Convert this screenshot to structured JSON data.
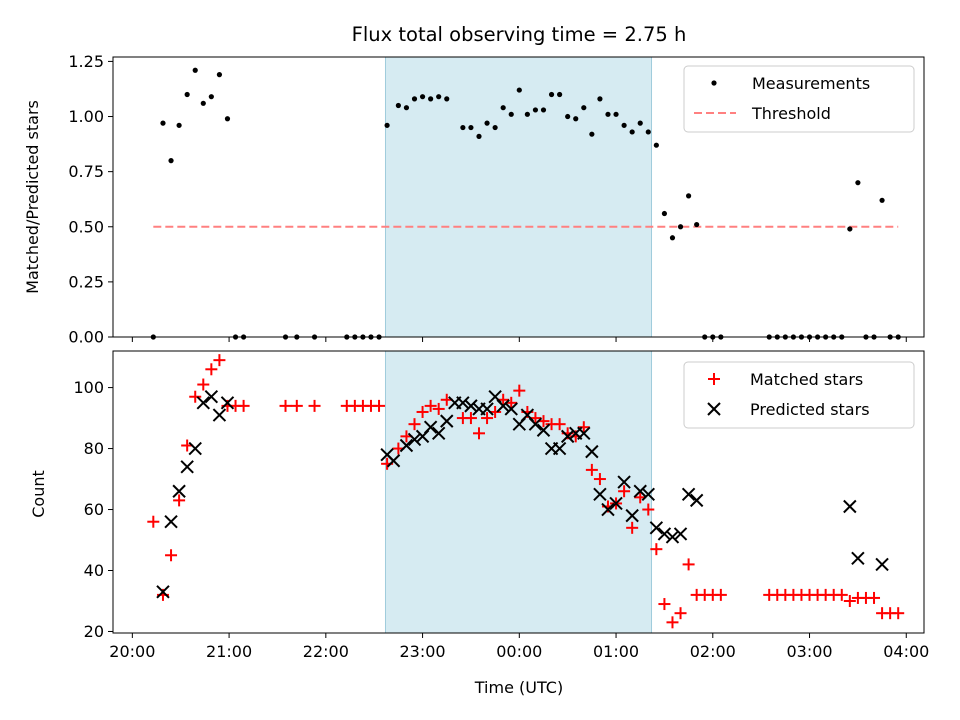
{
  "chart_data": [
    {
      "type": "scatter",
      "title": "Flux total observing time = 2.75 h",
      "ylabel": "Matched/Predicted stars",
      "ylim": [
        0,
        1.27
      ],
      "yticks": [
        "0.00",
        "0.25",
        "0.50",
        "0.75",
        "1.00",
        "1.25"
      ],
      "ytick_values": [
        0,
        0.25,
        0.5,
        0.75,
        1.0,
        1.25
      ],
      "grid": false,
      "legend_position": "top-right",
      "highlight_span": [
        "22:37",
        "01:22"
      ],
      "series": [
        {
          "name": "Measurements",
          "marker": "dot",
          "color": "#000000",
          "points": [
            [
              "20:13",
              0
            ],
            [
              "20:19",
              0.97
            ],
            [
              "20:24",
              0.8
            ],
            [
              "20:29",
              0.96
            ],
            [
              "20:34",
              1.1
            ],
            [
              "20:39",
              1.21
            ],
            [
              "20:44",
              1.06
            ],
            [
              "20:49",
              1.09
            ],
            [
              "20:54",
              1.19
            ],
            [
              "20:59",
              0.99
            ],
            [
              "21:04",
              0
            ],
            [
              "21:09",
              0
            ],
            [
              "21:35",
              0
            ],
            [
              "21:42",
              0
            ],
            [
              "21:53",
              0
            ],
            [
              "22:13",
              0
            ],
            [
              "22:18",
              0
            ],
            [
              "22:23",
              0
            ],
            [
              "22:28",
              0
            ],
            [
              "22:33",
              0
            ],
            [
              "22:38",
              0.96
            ],
            [
              "22:45",
              1.05
            ],
            [
              "22:50",
              1.04
            ],
            [
              "22:55",
              1.08
            ],
            [
              "23:00",
              1.09
            ],
            [
              "23:05",
              1.08
            ],
            [
              "23:10",
              1.09
            ],
            [
              "23:15",
              1.08
            ],
            [
              "23:25",
              0.95
            ],
            [
              "23:30",
              0.95
            ],
            [
              "23:35",
              0.91
            ],
            [
              "23:40",
              0.97
            ],
            [
              "23:45",
              0.95
            ],
            [
              "23:50",
              1.04
            ],
            [
              "23:55",
              1.01
            ],
            [
              "00:00",
              1.12
            ],
            [
              "00:05",
              1.01
            ],
            [
              "00:10",
              1.03
            ],
            [
              "00:15",
              1.03
            ],
            [
              "00:20",
              1.1
            ],
            [
              "00:25",
              1.1
            ],
            [
              "00:30",
              1.0
            ],
            [
              "00:35",
              0.99
            ],
            [
              "00:40",
              1.04
            ],
            [
              "00:45",
              0.92
            ],
            [
              "00:50",
              1.08
            ],
            [
              "00:55",
              1.01
            ],
            [
              "01:00",
              1.01
            ],
            [
              "01:05",
              0.96
            ],
            [
              "01:10",
              0.93
            ],
            [
              "01:15",
              0.97
            ],
            [
              "01:20",
              0.93
            ],
            [
              "01:25",
              0.87
            ],
            [
              "01:30",
              0.56
            ],
            [
              "01:35",
              0.45
            ],
            [
              "01:40",
              0.5
            ],
            [
              "01:45",
              0.64
            ],
            [
              "01:50",
              0.51
            ],
            [
              "01:55",
              0
            ],
            [
              "02:00",
              0
            ],
            [
              "02:05",
              0
            ],
            [
              "02:35",
              0
            ],
            [
              "02:40",
              0
            ],
            [
              "02:45",
              0
            ],
            [
              "02:50",
              0
            ],
            [
              "02:55",
              0
            ],
            [
              "03:00",
              0
            ],
            [
              "03:05",
              0
            ],
            [
              "03:10",
              0
            ],
            [
              "03:15",
              0
            ],
            [
              "03:20",
              0
            ],
            [
              "03:25",
              0.49
            ],
            [
              "03:30",
              0.7
            ],
            [
              "03:35",
              0
            ],
            [
              "03:40",
              0
            ],
            [
              "03:45",
              0.62
            ],
            [
              "03:50",
              0
            ],
            [
              "03:55",
              0
            ]
          ]
        },
        {
          "name": "Threshold",
          "marker": "dashed-line",
          "color": "#ff8080",
          "points": [
            [
              "20:13",
              0.5
            ],
            [
              "03:55",
              0.5
            ]
          ]
        }
      ]
    },
    {
      "type": "scatter",
      "xlabel": "Time (UTC)",
      "ylabel": "Count",
      "ylim": [
        19.5,
        112
      ],
      "yticks": [
        "20",
        "40",
        "60",
        "80",
        "100"
      ],
      "ytick_values": [
        20,
        40,
        60,
        80,
        100
      ],
      "xticks": [
        "20:00",
        "21:00",
        "22:00",
        "23:00",
        "00:00",
        "01:00",
        "02:00",
        "03:00",
        "04:00"
      ],
      "grid": false,
      "legend_position": "top-right",
      "highlight_span": [
        "22:37",
        "01:22"
      ],
      "series": [
        {
          "name": "Matched stars",
          "marker": "plus",
          "color": "#ff0000",
          "points": [
            [
              "20:13",
              56
            ],
            [
              "20:19",
              32
            ],
            [
              "20:24",
              45
            ],
            [
              "20:29",
              63
            ],
            [
              "20:34",
              81
            ],
            [
              "20:39",
              97
            ],
            [
              "20:44",
              101
            ],
            [
              "20:49",
              106
            ],
            [
              "20:54",
              109
            ],
            [
              "20:59",
              94
            ],
            [
              "21:04",
              94
            ],
            [
              "21:09",
              94
            ],
            [
              "21:35",
              94
            ],
            [
              "21:42",
              94
            ],
            [
              "21:53",
              94
            ],
            [
              "22:13",
              94
            ],
            [
              "22:18",
              94
            ],
            [
              "22:23",
              94
            ],
            [
              "22:28",
              94
            ],
            [
              "22:33",
              94
            ],
            [
              "22:38",
              75
            ],
            [
              "22:45",
              80
            ],
            [
              "22:50",
              84
            ],
            [
              "22:55",
              88
            ],
            [
              "23:00",
              92
            ],
            [
              "23:05",
              94
            ],
            [
              "23:10",
              93
            ],
            [
              "23:15",
              96
            ],
            [
              "23:25",
              90
            ],
            [
              "23:30",
              90
            ],
            [
              "23:35",
              85
            ],
            [
              "23:40",
              90
            ],
            [
              "23:45",
              92
            ],
            [
              "23:50",
              96
            ],
            [
              "23:55",
              95
            ],
            [
              "00:00",
              99
            ],
            [
              "00:05",
              92
            ],
            [
              "00:10",
              90
            ],
            [
              "00:15",
              89
            ],
            [
              "00:20",
              88
            ],
            [
              "00:25",
              88
            ],
            [
              "00:30",
              85
            ],
            [
              "00:35",
              84
            ],
            [
              "00:40",
              87
            ],
            [
              "00:45",
              73
            ],
            [
              "00:50",
              70
            ],
            [
              "00:55",
              61
            ],
            [
              "01:00",
              62
            ],
            [
              "01:05",
              66
            ],
            [
              "01:10",
              54
            ],
            [
              "01:15",
              64
            ],
            [
              "01:20",
              60
            ],
            [
              "01:25",
              47
            ],
            [
              "01:30",
              29
            ],
            [
              "01:35",
              23
            ],
            [
              "01:40",
              26
            ],
            [
              "01:45",
              42
            ],
            [
              "01:50",
              32
            ],
            [
              "01:55",
              32
            ],
            [
              "02:00",
              32
            ],
            [
              "02:05",
              32
            ],
            [
              "02:35",
              32
            ],
            [
              "02:40",
              32
            ],
            [
              "02:45",
              32
            ],
            [
              "02:50",
              32
            ],
            [
              "02:55",
              32
            ],
            [
              "03:00",
              32
            ],
            [
              "03:05",
              32
            ],
            [
              "03:10",
              32
            ],
            [
              "03:15",
              32
            ],
            [
              "03:20",
              32
            ],
            [
              "03:25",
              30
            ],
            [
              "03:30",
              31
            ],
            [
              "03:35",
              31
            ],
            [
              "03:40",
              31
            ],
            [
              "03:45",
              26
            ],
            [
              "03:50",
              26
            ],
            [
              "03:55",
              26
            ]
          ]
        },
        {
          "name": "Predicted stars",
          "marker": "x",
          "color": "#000000",
          "points": [
            [
              "20:19",
              33
            ],
            [
              "20:24",
              56
            ],
            [
              "20:29",
              66
            ],
            [
              "20:34",
              74
            ],
            [
              "20:39",
              80
            ],
            [
              "20:44",
              95
            ],
            [
              "20:49",
              97
            ],
            [
              "20:54",
              91
            ],
            [
              "20:59",
              95
            ],
            [
              "22:38",
              78
            ],
            [
              "22:42",
              76
            ],
            [
              "22:50",
              81
            ],
            [
              "22:55",
              83
            ],
            [
              "23:00",
              84
            ],
            [
              "23:05",
              87
            ],
            [
              "23:10",
              85
            ],
            [
              "23:15",
              89
            ],
            [
              "23:20",
              95
            ],
            [
              "23:25",
              95
            ],
            [
              "23:30",
              94
            ],
            [
              "23:35",
              93
            ],
            [
              "23:40",
              93
            ],
            [
              "23:45",
              97
            ],
            [
              "23:50",
              94
            ],
            [
              "23:55",
              93
            ],
            [
              "00:00",
              88
            ],
            [
              "00:05",
              91
            ],
            [
              "00:10",
              88
            ],
            [
              "00:15",
              86
            ],
            [
              "00:20",
              80
            ],
            [
              "00:25",
              80
            ],
            [
              "00:30",
              84
            ],
            [
              "00:35",
              85
            ],
            [
              "00:40",
              85
            ],
            [
              "00:45",
              79
            ],
            [
              "00:50",
              65
            ],
            [
              "00:55",
              60
            ],
            [
              "01:00",
              62
            ],
            [
              "01:05",
              69
            ],
            [
              "01:10",
              58
            ],
            [
              "01:15",
              66
            ],
            [
              "01:20",
              65
            ],
            [
              "01:25",
              54
            ],
            [
              "01:30",
              52
            ],
            [
              "01:35",
              51
            ],
            [
              "01:40",
              52
            ],
            [
              "01:45",
              65
            ],
            [
              "01:50",
              63
            ],
            [
              "03:25",
              61
            ],
            [
              "03:30",
              44
            ],
            [
              "03:45",
              42
            ]
          ]
        }
      ]
    }
  ]
}
